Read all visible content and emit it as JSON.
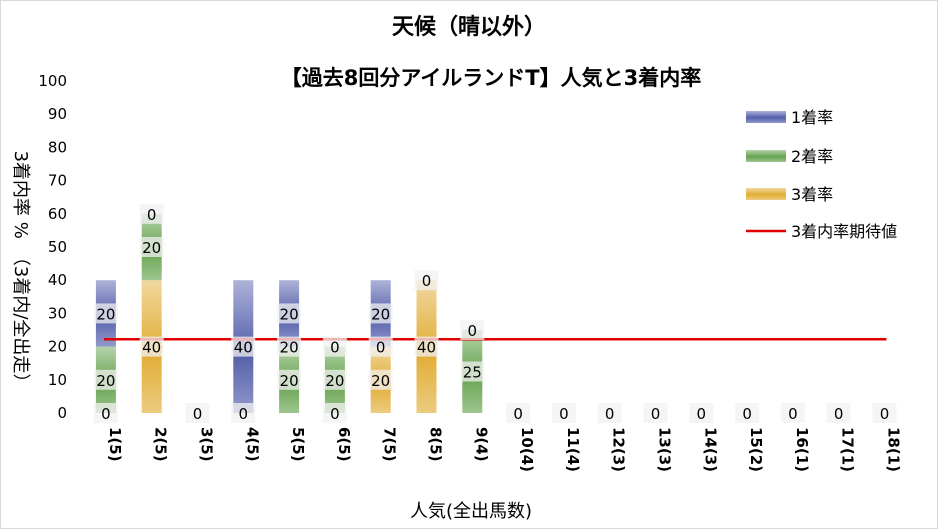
{
  "chart_data": {
    "type": "bar",
    "stacked": true,
    "title": "天候（晴以外）",
    "subtitle": "【過去8回分アイルランドT】人気と3着内率",
    "xlabel": "人気(全出馬数)",
    "ylabel": "3着内率 %　（3着内/全出走）",
    "ylim": [
      0,
      100
    ],
    "yticks": [
      "0",
      "10",
      "20",
      "30",
      "40",
      "50",
      "60",
      "70",
      "80",
      "90",
      "100"
    ],
    "grid": false,
    "legend_position": "right",
    "categories": [
      "1(5)",
      "2(5)",
      "3(5)",
      "4(5)",
      "5(5)",
      "6(5)",
      "7(5)",
      "8(5)",
      "9(4)",
      "10(4)",
      "11(4)",
      "12(3)",
      "13(3)",
      "14(3)",
      "15(2)",
      "16(1)",
      "17(1)",
      "18(1)"
    ],
    "series": [
      {
        "name": "1着率",
        "color": "#4a56a6",
        "values": [
          20,
          0,
          0,
          40,
          20,
          0,
          20,
          0,
          0,
          0,
          0,
          0,
          0,
          0,
          0,
          0,
          0,
          0
        ]
      },
      {
        "name": "2着率",
        "color": "#5e9e45",
        "values": [
          20,
          20,
          0,
          0,
          20,
          20,
          0,
          0,
          25,
          0,
          0,
          0,
          0,
          0,
          0,
          0,
          0,
          0
        ]
      },
      {
        "name": "3着率",
        "color": "#e0a82a",
        "values": [
          0,
          40,
          0,
          0,
          0,
          0,
          20,
          40,
          0,
          0,
          0,
          0,
          0,
          0,
          0,
          0,
          0,
          0
        ]
      }
    ],
    "labels": [
      {
        "category": "1(5)",
        "items": [
          {
            "text": "0",
            "at": 0
          },
          {
            "text": "20",
            "at": 10
          },
          {
            "text": "20",
            "at": 30
          }
        ]
      },
      {
        "category": "2(5)",
        "items": [
          {
            "text": "40",
            "at": 20
          },
          {
            "text": "20",
            "at": 50
          },
          {
            "text": "0",
            "at": 60
          }
        ]
      },
      {
        "category": "3(5)",
        "items": [
          {
            "text": "0",
            "at": 0
          }
        ]
      },
      {
        "category": "4(5)",
        "items": [
          {
            "text": "0",
            "at": 0
          },
          {
            "text": "40",
            "at": 20
          }
        ]
      },
      {
        "category": "5(5)",
        "items": [
          {
            "text": "20",
            "at": 10
          },
          {
            "text": "20",
            "at": 20
          },
          {
            "text": "20",
            "at": 30
          }
        ]
      },
      {
        "category": "6(5)",
        "items": [
          {
            "text": "0",
            "at": 0
          },
          {
            "text": "20",
            "at": 10
          },
          {
            "text": "0",
            "at": 20
          }
        ]
      },
      {
        "category": "7(5)",
        "items": [
          {
            "text": "20",
            "at": 10
          },
          {
            "text": "0",
            "at": 20
          },
          {
            "text": "20",
            "at": 30
          }
        ]
      },
      {
        "category": "8(5)",
        "items": [
          {
            "text": "40",
            "at": 20
          },
          {
            "text": "0",
            "at": 40
          }
        ]
      },
      {
        "category": "9(4)",
        "items": [
          {
            "text": "25",
            "at": 12.5
          },
          {
            "text": "0",
            "at": 25
          }
        ]
      },
      {
        "category": "10(4)",
        "items": [
          {
            "text": "0",
            "at": 0
          }
        ]
      },
      {
        "category": "11(4)",
        "items": [
          {
            "text": "0",
            "at": 0
          }
        ]
      },
      {
        "category": "12(3)",
        "items": [
          {
            "text": "0",
            "at": 0
          }
        ]
      },
      {
        "category": "13(3)",
        "items": [
          {
            "text": "0",
            "at": 0
          }
        ]
      },
      {
        "category": "14(3)",
        "items": [
          {
            "text": "0",
            "at": 0
          }
        ]
      },
      {
        "category": "15(2)",
        "items": [
          {
            "text": "0",
            "at": 0
          }
        ]
      },
      {
        "category": "16(1)",
        "items": [
          {
            "text": "0",
            "at": 0
          }
        ]
      },
      {
        "category": "17(1)",
        "items": [
          {
            "text": "0",
            "at": 0
          }
        ]
      },
      {
        "category": "18(1)",
        "items": [
          {
            "text": "0",
            "at": 0
          }
        ]
      }
    ],
    "expected_line": {
      "name": "3着内率期待値",
      "value": 22.2,
      "color": "#e00000"
    }
  }
}
